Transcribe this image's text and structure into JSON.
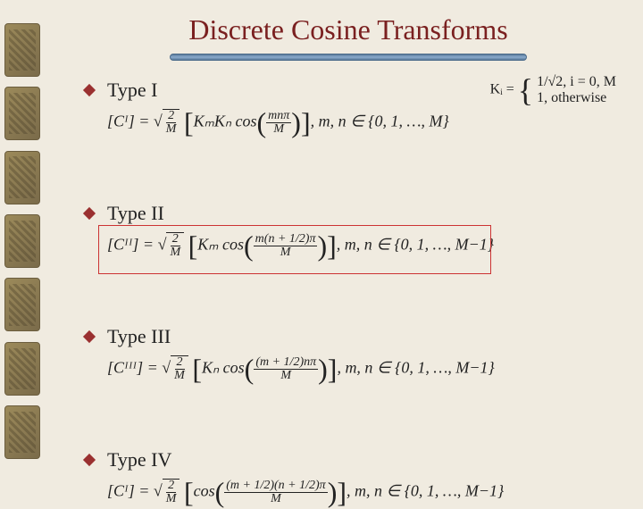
{
  "title": "Discrete Cosine Transforms",
  "items": [
    {
      "label": "Type I",
      "formula_lhs": "[Cᴵ] =",
      "sqrt_num": "2",
      "sqrt_den": "M",
      "coef": "KₘKₙ cos",
      "cos_num": "mnπ",
      "cos_den": "M",
      "range": "m, n ∈ {0, 1, …, M}"
    },
    {
      "label": "Type II",
      "formula_lhs": "[Cᴵᴵ] =",
      "sqrt_num": "2",
      "sqrt_den": "M",
      "coef": "Kₘ cos",
      "cos_num": "m(n + 1/2)π",
      "cos_den": "M",
      "range": "m, n ∈ {0, 1, …, M−1}",
      "highlighted": true
    },
    {
      "label": "Type III",
      "formula_lhs": "[Cᴵᴵᴵ] =",
      "sqrt_num": "2",
      "sqrt_den": "M",
      "coef": "Kₙ cos",
      "cos_num": "(m + 1/2)nπ",
      "cos_den": "M",
      "range": "m, n ∈ {0, 1, …, M−1}"
    },
    {
      "label": "Type IV",
      "formula_lhs": "[Cᴵ⹽] =",
      "sqrt_num": "2",
      "sqrt_den": "M",
      "coef": "cos",
      "cos_num": "(m + 1/2)(n + 1/2)π",
      "cos_den": "M",
      "range": "m, n ∈ {0, 1, …, M−1}"
    }
  ],
  "ki_definition": {
    "var": "Kᵢ =",
    "case1_val": "1/√2,",
    "case1_cond": "i = 0, M",
    "case2_val": "1,",
    "case2_cond": "otherwise"
  },
  "colors": {
    "title": "#7a2020",
    "bullet": "#9a3030",
    "text": "#222222",
    "background": "#f0ebe0",
    "highlight_border": "#cc3333"
  }
}
